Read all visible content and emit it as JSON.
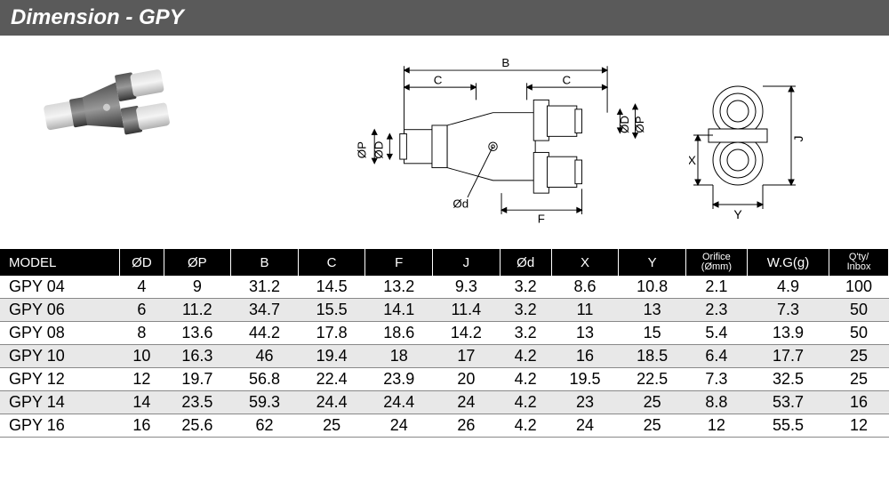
{
  "header": {
    "title": "Dimension - GPY"
  },
  "diagram": {
    "labels": {
      "B": "B",
      "C": "C",
      "F": "F",
      "J": "J",
      "X": "X",
      "Y": "Y",
      "phiD": "ØD",
      "phiP": "ØP",
      "phid": "Ød"
    },
    "stroke": "#000000",
    "fill_light": "#f0f0f0"
  },
  "table": {
    "columns": [
      {
        "key": "model",
        "label": "MODEL",
        "class": "model-col"
      },
      {
        "key": "phiD",
        "label": "ØD"
      },
      {
        "key": "phiP",
        "label": "ØP"
      },
      {
        "key": "B",
        "label": "B"
      },
      {
        "key": "C",
        "label": "C"
      },
      {
        "key": "F",
        "label": "F"
      },
      {
        "key": "J",
        "label": "J"
      },
      {
        "key": "phid",
        "label": "Ød"
      },
      {
        "key": "X",
        "label": "X"
      },
      {
        "key": "Y",
        "label": "Y"
      },
      {
        "key": "orifice",
        "label": "Orifice",
        "sub": "(Ømm)"
      },
      {
        "key": "wg",
        "label": "W.G(g)"
      },
      {
        "key": "qty",
        "label": "Q'ty/",
        "sub": "Inbox"
      }
    ],
    "rows": [
      {
        "model": "GPY 04",
        "phiD": "4",
        "phiP": "9",
        "B": "31.2",
        "C": "14.5",
        "F": "13.2",
        "J": "9.3",
        "phid": "3.2",
        "X": "8.6",
        "Y": "10.8",
        "orifice": "2.1",
        "wg": "4.9",
        "qty": "100"
      },
      {
        "model": "GPY 06",
        "phiD": "6",
        "phiP": "11.2",
        "B": "34.7",
        "C": "15.5",
        "F": "14.1",
        "J": "11.4",
        "phid": "3.2",
        "X": "11",
        "Y": "13",
        "orifice": "2.3",
        "wg": "7.3",
        "qty": "50"
      },
      {
        "model": "GPY 08",
        "phiD": "8",
        "phiP": "13.6",
        "B": "44.2",
        "C": "17.8",
        "F": "18.6",
        "J": "14.2",
        "phid": "3.2",
        "X": "13",
        "Y": "15",
        "orifice": "5.4",
        "wg": "13.9",
        "qty": "50"
      },
      {
        "model": "GPY 10",
        "phiD": "10",
        "phiP": "16.3",
        "B": "46",
        "C": "19.4",
        "F": "18",
        "J": "17",
        "phid": "4.2",
        "X": "16",
        "Y": "18.5",
        "orifice": "6.4",
        "wg": "17.7",
        "qty": "25"
      },
      {
        "model": "GPY 12",
        "phiD": "12",
        "phiP": "19.7",
        "B": "56.8",
        "C": "22.4",
        "F": "23.9",
        "J": "20",
        "phid": "4.2",
        "X": "19.5",
        "Y": "22.5",
        "orifice": "7.3",
        "wg": "32.5",
        "qty": "25"
      },
      {
        "model": "GPY 14",
        "phiD": "14",
        "phiP": "23.5",
        "B": "59.3",
        "C": "24.4",
        "F": "24.4",
        "J": "24",
        "phid": "4.2",
        "X": "23",
        "Y": "25",
        "orifice": "8.8",
        "wg": "53.7",
        "qty": "16"
      },
      {
        "model": "GPY 16",
        "phiD": "16",
        "phiP": "25.6",
        "B": "62",
        "C": "25",
        "F": "24",
        "J": "26",
        "phid": "4.2",
        "X": "24",
        "Y": "25",
        "orifice": "12",
        "wg": "55.5",
        "qty": "12"
      }
    ]
  }
}
